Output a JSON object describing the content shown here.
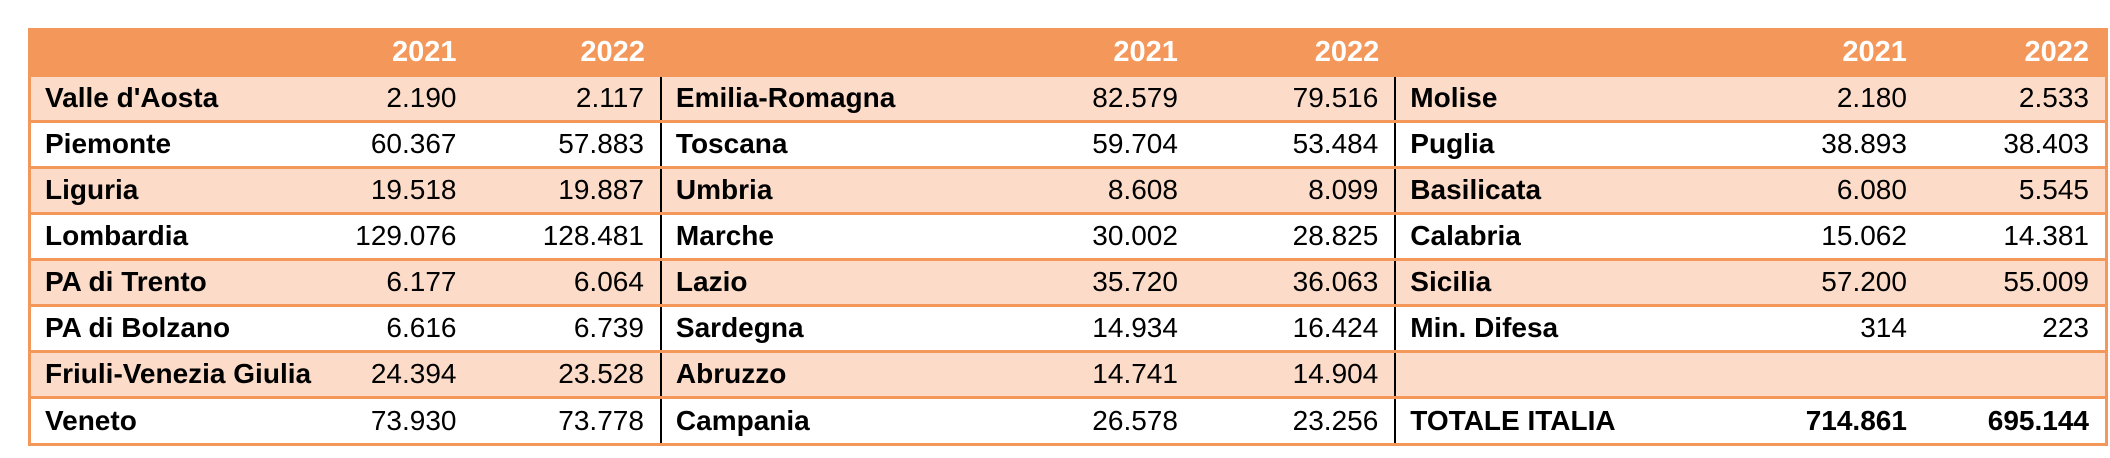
{
  "header": {
    "y1": "2021",
    "y2": "2022"
  },
  "rows": [
    [
      {
        "n": "Valle d'Aosta",
        "a": "2.190",
        "b": "2.117"
      },
      {
        "n": "Emilia-Romagna",
        "a": "82.579",
        "b": "79.516"
      },
      {
        "n": "Molise",
        "a": "2.180",
        "b": "2.533"
      }
    ],
    [
      {
        "n": "Piemonte",
        "a": "60.367",
        "b": "57.883"
      },
      {
        "n": "Toscana",
        "a": "59.704",
        "b": "53.484"
      },
      {
        "n": "Puglia",
        "a": "38.893",
        "b": "38.403"
      }
    ],
    [
      {
        "n": "Liguria",
        "a": "19.518",
        "b": "19.887"
      },
      {
        "n": "Umbria",
        "a": "8.608",
        "b": "8.099"
      },
      {
        "n": "Basilicata",
        "a": "6.080",
        "b": "5.545"
      }
    ],
    [
      {
        "n": "Lombardia",
        "a": "129.076",
        "b": "128.481"
      },
      {
        "n": "Marche",
        "a": "30.002",
        "b": "28.825"
      },
      {
        "n": "Calabria",
        "a": "15.062",
        "b": "14.381"
      }
    ],
    [
      {
        "n": "PA di Trento",
        "a": "6.177",
        "b": "6.064"
      },
      {
        "n": "Lazio",
        "a": "35.720",
        "b": "36.063"
      },
      {
        "n": "Sicilia",
        "a": "57.200",
        "b": "55.009"
      }
    ],
    [
      {
        "n": "PA di Bolzano",
        "a": "6.616",
        "b": "6.739"
      },
      {
        "n": "Sardegna",
        "a": "14.934",
        "b": "16.424"
      },
      {
        "n": "Min. Difesa",
        "a": "314",
        "b": "223"
      }
    ],
    [
      {
        "n": "Friuli-Venezia Giulia",
        "a": "24.394",
        "b": "23.528"
      },
      {
        "n": "Abruzzo",
        "a": "14.741",
        "b": "14.904"
      },
      {
        "n": "",
        "a": "",
        "b": ""
      }
    ],
    [
      {
        "n": "Veneto",
        "a": "73.930",
        "b": "73.778"
      },
      {
        "n": "Campania",
        "a": "26.578",
        "b": "23.256"
      },
      {
        "n": "TOTALE ITALIA",
        "a": "714.861",
        "b": "695.144"
      }
    ]
  ],
  "colors": {
    "accent": "#f4975a",
    "band": "#fcdcc9"
  }
}
